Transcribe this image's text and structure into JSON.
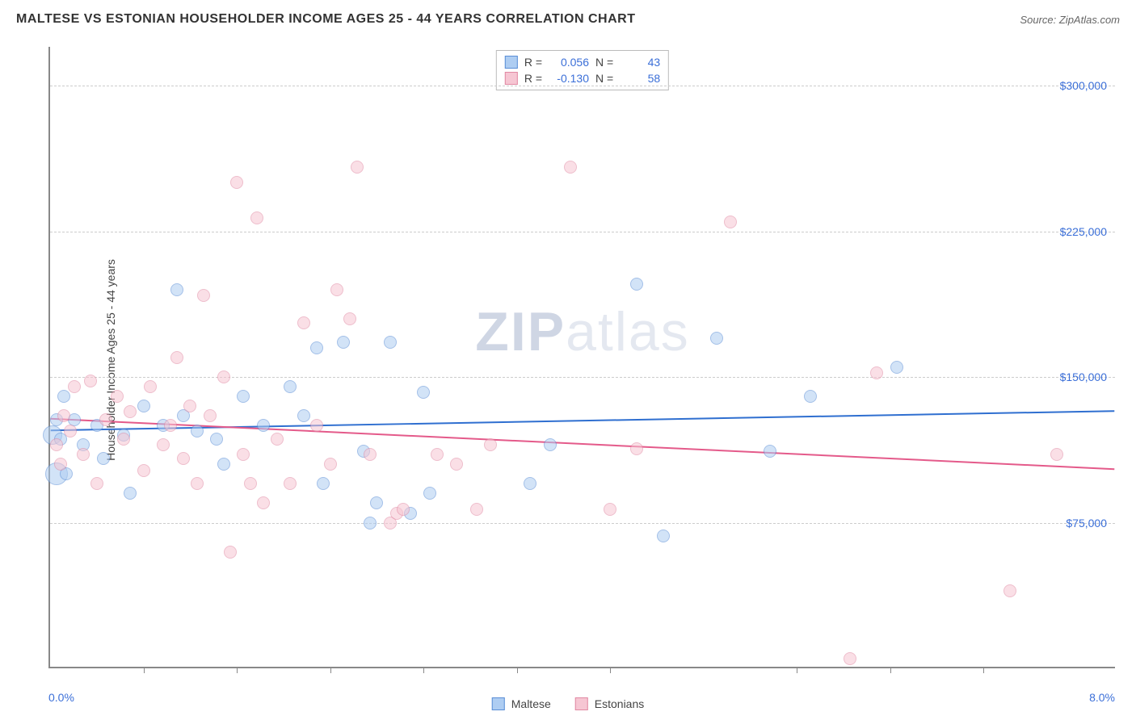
{
  "title": "MALTESE VS ESTONIAN HOUSEHOLDER INCOME AGES 25 - 44 YEARS CORRELATION CHART",
  "source_label": "Source: ZipAtlas.com",
  "ylabel": "Householder Income Ages 25 - 44 years",
  "watermark_prefix": "ZIP",
  "watermark_suffix": "atlas",
  "chart": {
    "type": "scatter",
    "background_color": "#ffffff",
    "grid_color": "#cccccc",
    "axis_color": "#888888",
    "label_color": "#3b6fd8",
    "xlim": [
      0,
      8
    ],
    "ylim": [
      0,
      320000
    ],
    "x_unit": "%",
    "y_unit": "$",
    "xticks": [
      0.7,
      1.4,
      2.1,
      2.8,
      3.5,
      4.2,
      5.6,
      6.3,
      7.0
    ],
    "yticks": [
      {
        "v": 75000,
        "label": "$75,000"
      },
      {
        "v": 150000,
        "label": "$150,000"
      },
      {
        "v": 225000,
        "label": "$225,000"
      },
      {
        "v": 300000,
        "label": "$300,000"
      }
    ],
    "xtick_labels": {
      "left": "0.0%",
      "right": "8.0%"
    },
    "marker_radius": 8,
    "marker_opacity": 0.55,
    "line_width": 2,
    "series": [
      {
        "name": "Maltese",
        "fill": "#aecdf2",
        "stroke": "#5a8ed6",
        "line_color": "#2f6fd0",
        "R_label": "R =",
        "R": "0.056",
        "N_label": "N =",
        "N": "43",
        "trend": {
          "y_at_xmin": 122000,
          "y_at_xmax": 132000
        },
        "points": [
          {
            "x": 0.02,
            "y": 120000,
            "r": 12
          },
          {
            "x": 0.05,
            "y": 128000
          },
          {
            "x": 0.05,
            "y": 100000,
            "r": 14
          },
          {
            "x": 0.08,
            "y": 118000
          },
          {
            "x": 0.1,
            "y": 140000
          },
          {
            "x": 0.12,
            "y": 100000
          },
          {
            "x": 0.18,
            "y": 128000
          },
          {
            "x": 0.25,
            "y": 115000
          },
          {
            "x": 0.35,
            "y": 125000
          },
          {
            "x": 0.4,
            "y": 108000
          },
          {
            "x": 0.55,
            "y": 120000
          },
          {
            "x": 0.6,
            "y": 90000
          },
          {
            "x": 0.7,
            "y": 135000
          },
          {
            "x": 0.85,
            "y": 125000
          },
          {
            "x": 0.95,
            "y": 195000
          },
          {
            "x": 1.0,
            "y": 130000
          },
          {
            "x": 1.1,
            "y": 122000
          },
          {
            "x": 1.25,
            "y": 118000
          },
          {
            "x": 1.3,
            "y": 105000
          },
          {
            "x": 1.45,
            "y": 140000
          },
          {
            "x": 1.6,
            "y": 125000
          },
          {
            "x": 1.8,
            "y": 145000
          },
          {
            "x": 1.9,
            "y": 130000
          },
          {
            "x": 2.0,
            "y": 165000
          },
          {
            "x": 2.05,
            "y": 95000
          },
          {
            "x": 2.2,
            "y": 168000
          },
          {
            "x": 2.35,
            "y": 112000
          },
          {
            "x": 2.4,
            "y": 75000
          },
          {
            "x": 2.45,
            "y": 85000
          },
          {
            "x": 2.55,
            "y": 168000
          },
          {
            "x": 2.7,
            "y": 80000
          },
          {
            "x": 2.8,
            "y": 142000
          },
          {
            "x": 2.85,
            "y": 90000
          },
          {
            "x": 3.6,
            "y": 95000
          },
          {
            "x": 3.75,
            "y": 115000
          },
          {
            "x": 4.4,
            "y": 198000
          },
          {
            "x": 4.6,
            "y": 68000
          },
          {
            "x": 5.0,
            "y": 170000
          },
          {
            "x": 5.4,
            "y": 112000
          },
          {
            "x": 5.7,
            "y": 140000
          },
          {
            "x": 6.35,
            "y": 155000
          }
        ]
      },
      {
        "name": "Estonians",
        "fill": "#f6c6d3",
        "stroke": "#e189a3",
        "line_color": "#e45a8a",
        "R_label": "R =",
        "R": "-0.130",
        "N_label": "N =",
        "N": "58",
        "trend": {
          "y_at_xmin": 128000,
          "y_at_xmax": 102000
        },
        "points": [
          {
            "x": 0.05,
            "y": 115000
          },
          {
            "x": 0.08,
            "y": 105000
          },
          {
            "x": 0.1,
            "y": 130000
          },
          {
            "x": 0.15,
            "y": 122000
          },
          {
            "x": 0.18,
            "y": 145000
          },
          {
            "x": 0.25,
            "y": 110000
          },
          {
            "x": 0.3,
            "y": 148000
          },
          {
            "x": 0.35,
            "y": 95000
          },
          {
            "x": 0.42,
            "y": 128000
          },
          {
            "x": 0.5,
            "y": 140000
          },
          {
            "x": 0.55,
            "y": 118000
          },
          {
            "x": 0.6,
            "y": 132000
          },
          {
            "x": 0.7,
            "y": 102000
          },
          {
            "x": 0.75,
            "y": 145000
          },
          {
            "x": 0.85,
            "y": 115000
          },
          {
            "x": 0.9,
            "y": 125000
          },
          {
            "x": 0.95,
            "y": 160000
          },
          {
            "x": 1.0,
            "y": 108000
          },
          {
            "x": 1.05,
            "y": 135000
          },
          {
            "x": 1.1,
            "y": 95000
          },
          {
            "x": 1.15,
            "y": 192000
          },
          {
            "x": 1.2,
            "y": 130000
          },
          {
            "x": 1.3,
            "y": 150000
          },
          {
            "x": 1.35,
            "y": 60000
          },
          {
            "x": 1.4,
            "y": 250000
          },
          {
            "x": 1.45,
            "y": 110000
          },
          {
            "x": 1.5,
            "y": 95000
          },
          {
            "x": 1.55,
            "y": 232000
          },
          {
            "x": 1.6,
            "y": 85000
          },
          {
            "x": 1.7,
            "y": 118000
          },
          {
            "x": 1.8,
            "y": 95000
          },
          {
            "x": 1.9,
            "y": 178000
          },
          {
            "x": 2.0,
            "y": 125000
          },
          {
            "x": 2.1,
            "y": 105000
          },
          {
            "x": 2.15,
            "y": 195000
          },
          {
            "x": 2.25,
            "y": 180000
          },
          {
            "x": 2.3,
            "y": 258000
          },
          {
            "x": 2.4,
            "y": 110000
          },
          {
            "x": 2.55,
            "y": 75000
          },
          {
            "x": 2.6,
            "y": 80000
          },
          {
            "x": 2.65,
            "y": 82000
          },
          {
            "x": 2.9,
            "y": 110000
          },
          {
            "x": 3.05,
            "y": 105000
          },
          {
            "x": 3.2,
            "y": 82000
          },
          {
            "x": 3.3,
            "y": 115000
          },
          {
            "x": 3.9,
            "y": 258000
          },
          {
            "x": 4.2,
            "y": 82000
          },
          {
            "x": 4.4,
            "y": 113000
          },
          {
            "x": 5.1,
            "y": 230000
          },
          {
            "x": 6.0,
            "y": 5000
          },
          {
            "x": 6.2,
            "y": 152000
          },
          {
            "x": 7.2,
            "y": 40000
          },
          {
            "x": 7.55,
            "y": 110000
          }
        ]
      }
    ]
  },
  "legend": {
    "items": [
      {
        "label": "Maltese",
        "fill": "#aecdf2",
        "stroke": "#5a8ed6"
      },
      {
        "label": "Estonians",
        "fill": "#f6c6d3",
        "stroke": "#e189a3"
      }
    ]
  }
}
